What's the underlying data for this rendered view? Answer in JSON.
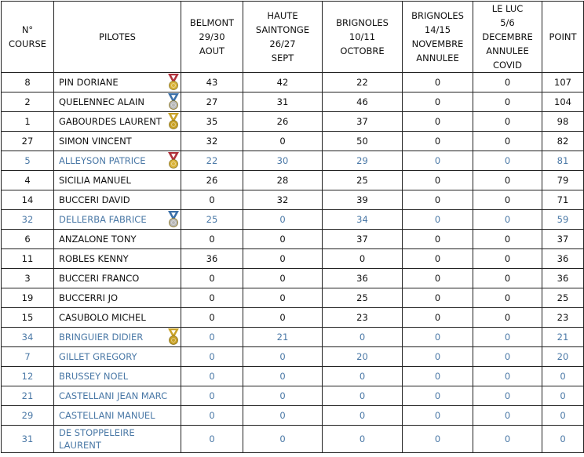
{
  "table": {
    "header": [
      [
        "N°",
        "COURSE"
      ],
      [
        "PILOTES"
      ],
      [
        "BELMONT",
        "29/30",
        "AOUT"
      ],
      [
        "HAUTE",
        "SAINTONGE",
        "26/27",
        "SEPT"
      ],
      [
        "BRIGNOLES",
        "10/11",
        "OCTOBRE"
      ],
      [
        "BRIGNOLES",
        "14/15",
        "NOVEMBRE",
        "ANNULEE"
      ],
      [
        "LE LUC",
        "5/6",
        "DECEMBRE",
        "ANNULEE",
        "COVID"
      ],
      [
        "POINT"
      ]
    ],
    "rows": [
      [
        8,
        "PIN DORIANE",
        43,
        42,
        22,
        0,
        0,
        107
      ],
      [
        2,
        "QUELENNEC ALAIN",
        27,
        31,
        46,
        0,
        0,
        104
      ],
      [
        1,
        "GABOURDES LAURENT",
        35,
        26,
        37,
        0,
        0,
        98
      ],
      [
        27,
        "SIMON VINCENT",
        32,
        0,
        50,
        0,
        0,
        82
      ],
      [
        5,
        "ALLEYSON PATRICE",
        22,
        30,
        29,
        0,
        0,
        81
      ],
      [
        4,
        "SICILIA MANUEL",
        26,
        28,
        25,
        0,
        0,
        79
      ],
      [
        14,
        "BUCCERI DAVID",
        0,
        32,
        39,
        0,
        0,
        71
      ],
      [
        32,
        "DELLERBA FABRICE",
        25,
        0,
        34,
        0,
        0,
        59
      ],
      [
        6,
        "ANZALONE TONY",
        0,
        0,
        37,
        0,
        0,
        37
      ],
      [
        11,
        "ROBLES KENNY",
        36,
        0,
        0,
        0,
        0,
        36
      ],
      [
        3,
        "BUCCERI FRANCO",
        0,
        0,
        36,
        0,
        0,
        36
      ],
      [
        19,
        "BUCCERRI JO",
        0,
        0,
        25,
        0,
        0,
        25
      ],
      [
        15,
        "CASUBOLO MICHEL",
        0,
        0,
        23,
        0,
        0,
        23
      ],
      [
        34,
        "BRINGUIER DIDIER",
        0,
        21,
        0,
        0,
        0,
        21
      ],
      [
        7,
        "GILLET GREGORY",
        0,
        0,
        20,
        0,
        0,
        20
      ],
      [
        12,
        "BRUSSEY NOEL",
        0,
        0,
        0,
        0,
        0,
        0
      ],
      [
        21,
        "CASTELLANI JEAN MARC",
        0,
        0,
        0,
        0,
        0,
        0
      ],
      [
        29,
        "CASTELLANI MANUEL",
        0,
        0,
        0,
        0,
        0,
        0
      ],
      [
        31,
        "DE STOPPELEIRE LAURENT",
        0,
        0,
        0,
        0,
        0,
        0
      ]
    ]
  }
}
